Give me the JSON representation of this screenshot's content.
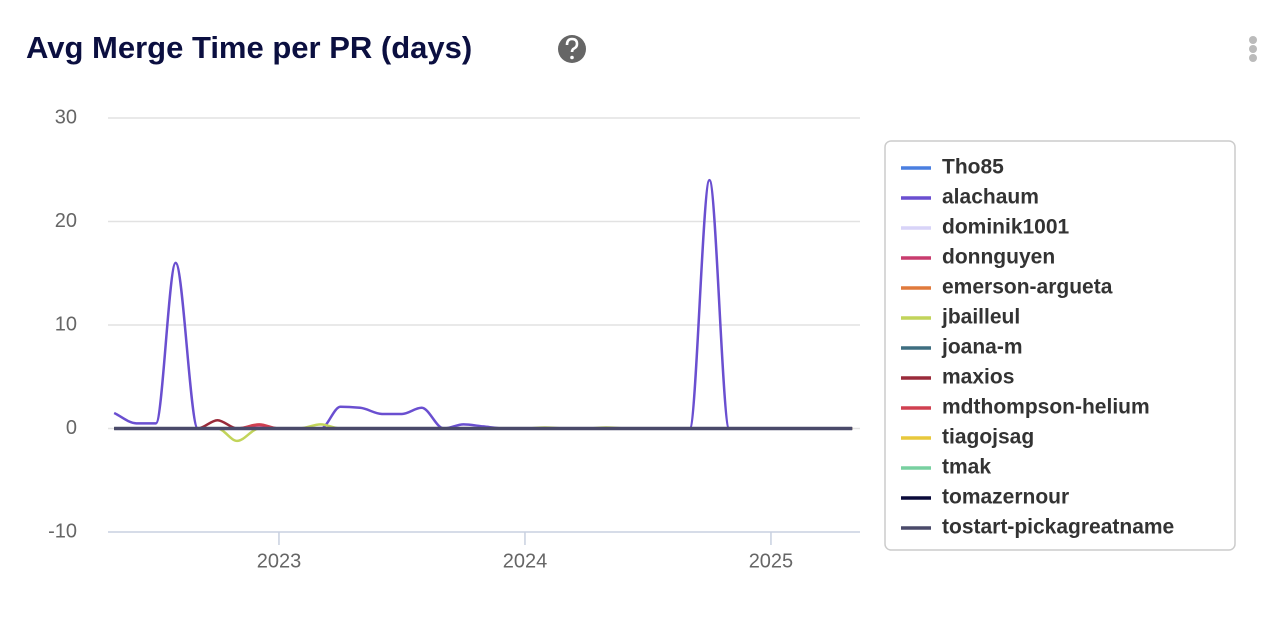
{
  "chart_data": {
    "type": "line",
    "title": "Avg Merge Time per PR (days)",
    "x": [
      2022.33,
      2022.42,
      2022.5,
      2022.58,
      2022.67,
      2022.75,
      2022.83,
      2022.92,
      2023,
      2023.08,
      2023.17,
      2023.25,
      2023.33,
      2023.42,
      2023.5,
      2023.58,
      2023.67,
      2023.75,
      2023.83,
      2023.92,
      2024,
      2024.08,
      2024.17,
      2024.25,
      2024.33,
      2024.42,
      2024.5,
      2024.58,
      2024.67,
      2024.75,
      2024.83,
      2024.92,
      2025,
      2025.08,
      2025.17,
      2025.25,
      2025.33
    ],
    "xlim": [
      2022.305,
      2025.362
    ],
    "xticks": [
      2023,
      2024,
      2025
    ],
    "ylim": [
      -10,
      30
    ],
    "yticks": [
      -10,
      0,
      10,
      20,
      30
    ],
    "grid": true,
    "legend": "right",
    "series": [
      {
        "name": "Tho85",
        "color": "#4a7fe0",
        "values": [
          0,
          0,
          0,
          0,
          0,
          0,
          0,
          0,
          0,
          0,
          0,
          0,
          0,
          0,
          0,
          0,
          0,
          0,
          0,
          0,
          0,
          0,
          0,
          0,
          0,
          0,
          0,
          0,
          0,
          0,
          0,
          0,
          0,
          0,
          0,
          0,
          0
        ]
      },
      {
        "name": "alachaum",
        "color": "#6a4fd0",
        "values": [
          1.5,
          0.5,
          0.5,
          16,
          0,
          0,
          0,
          0,
          0,
          0,
          0,
          2.1,
          2,
          1.4,
          1.4,
          2,
          0,
          0.4,
          0.2,
          0,
          0,
          0,
          0,
          0,
          0,
          0,
          0,
          0,
          0,
          24,
          0,
          0,
          0,
          0,
          0,
          0,
          0
        ]
      },
      {
        "name": "dominik1001",
        "color": "#d8d4f8",
        "values": [
          0,
          0,
          0,
          0,
          0,
          0,
          0,
          0,
          0,
          0,
          0,
          0,
          0,
          0,
          0,
          0,
          0,
          0,
          0,
          0,
          0,
          0,
          0,
          0,
          0,
          0,
          0,
          0,
          0,
          0,
          0,
          0,
          0,
          0,
          0,
          0,
          0
        ]
      },
      {
        "name": "donnguyen",
        "color": "#c83c6e",
        "values": [
          0,
          0,
          0,
          0,
          0,
          0,
          0,
          0.3,
          0,
          0,
          0,
          0,
          0,
          0,
          0,
          0,
          0,
          0,
          0,
          0,
          0,
          0,
          0,
          0,
          0,
          0,
          0,
          0,
          0,
          0,
          0,
          0,
          0,
          0,
          0,
          0,
          0
        ]
      },
      {
        "name": "emerson-argueta",
        "color": "#e07a3c",
        "values": [
          0,
          0,
          0,
          0,
          0,
          0,
          0,
          0,
          0,
          0,
          0,
          0,
          0,
          0,
          0,
          0,
          0,
          0,
          0,
          0,
          0,
          0,
          0,
          0,
          0,
          0,
          0,
          0,
          0,
          0,
          0,
          0,
          0,
          0,
          0,
          0,
          0
        ]
      },
      {
        "name": "jbailleul",
        "color": "#c2d45a",
        "values": [
          0,
          0,
          0,
          0,
          0,
          0,
          -1.2,
          0,
          0,
          0,
          0.4,
          0,
          0,
          0,
          0,
          0,
          0,
          0,
          0,
          0,
          0,
          0.1,
          0,
          0,
          0.1,
          0,
          0,
          0,
          0,
          0,
          0,
          0,
          0,
          0,
          0,
          0,
          0
        ]
      },
      {
        "name": "joana-m",
        "color": "#3e6e80",
        "values": [
          0,
          0,
          0,
          0,
          0,
          0,
          0,
          0,
          0,
          0,
          0,
          0,
          0,
          0,
          0,
          0,
          0,
          0,
          0,
          0,
          0,
          0,
          0,
          0,
          0,
          0,
          0,
          0,
          0,
          0,
          0,
          0,
          0,
          0,
          0,
          0,
          0
        ]
      },
      {
        "name": "maxios",
        "color": "#9a2a3a",
        "values": [
          0,
          0,
          0,
          0,
          0,
          0.8,
          0,
          0,
          0,
          0,
          0,
          0,
          0,
          0,
          0,
          0,
          0,
          0,
          0,
          0,
          0,
          0,
          0,
          0,
          0,
          0,
          0,
          0,
          0,
          0,
          0,
          0,
          0,
          0,
          0,
          0,
          0
        ]
      },
      {
        "name": "mdthompson-helium",
        "color": "#d04050",
        "values": [
          0,
          0,
          0,
          0,
          0,
          0,
          0,
          0.4,
          0,
          0,
          0,
          0,
          0,
          0,
          0,
          0,
          0,
          0,
          0,
          0,
          0,
          0,
          0,
          0,
          0,
          0,
          0,
          0,
          0,
          0,
          0,
          0,
          0,
          0,
          0,
          0,
          0
        ]
      },
      {
        "name": "tiagojsag",
        "color": "#e8c83c",
        "values": [
          0,
          0,
          0,
          0,
          0,
          0,
          0,
          0,
          0,
          0,
          0,
          0,
          0,
          0,
          0,
          0,
          0,
          0,
          0,
          0,
          0,
          0,
          0,
          0,
          0,
          0,
          0,
          0,
          0,
          0,
          0,
          0,
          0,
          0,
          0,
          0,
          0
        ]
      },
      {
        "name": "tmak",
        "color": "#78d0a0",
        "values": [
          0,
          0,
          0,
          0,
          0,
          0,
          0,
          0,
          0,
          0,
          0,
          0,
          0,
          0,
          0,
          0,
          0,
          0,
          0,
          0,
          0,
          0,
          0,
          0,
          0,
          0,
          0,
          0,
          0,
          0,
          0,
          0,
          0,
          0,
          0,
          0,
          0
        ]
      },
      {
        "name": "tomazernour",
        "color": "#0a0a3a",
        "values": [
          0,
          0,
          0,
          0,
          0,
          0,
          0,
          0,
          0,
          0,
          0,
          0,
          0,
          0,
          0,
          0,
          0,
          0,
          0,
          0,
          0,
          0,
          0,
          0,
          0,
          0,
          0,
          0,
          0,
          0,
          0,
          0,
          0,
          0,
          0,
          0,
          0
        ]
      },
      {
        "name": "tostart-pickagreatname",
        "color": "#4a4a6a",
        "values": [
          0,
          0,
          0,
          0,
          0,
          0,
          0,
          0,
          0,
          0,
          0,
          0,
          0,
          0,
          0,
          0,
          0,
          0,
          0,
          0,
          0,
          0,
          0,
          0,
          0,
          0,
          0,
          0,
          0,
          0,
          0,
          0,
          0,
          0,
          0,
          0,
          0
        ]
      }
    ]
  }
}
